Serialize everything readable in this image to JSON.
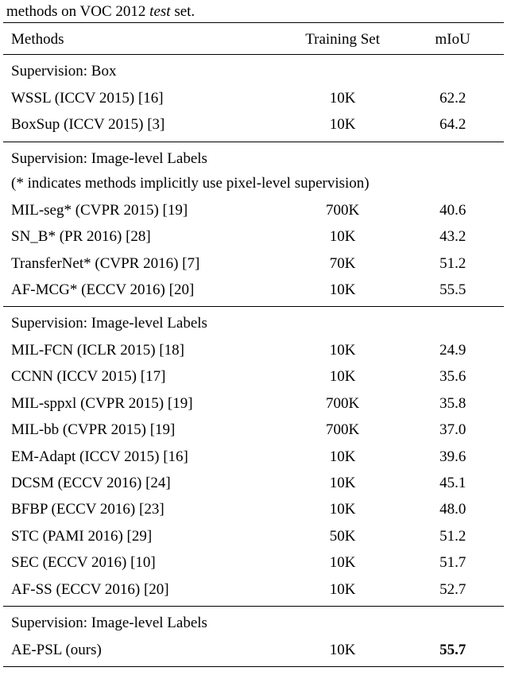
{
  "caption_prefix": "methods on VOC 2012 ",
  "caption_italic": "test",
  "caption_suffix": " set.",
  "headers": {
    "methods": "Methods",
    "training": "Training Set",
    "miou": "mIoU"
  },
  "sections": [
    {
      "title": "Supervision: Box",
      "note": "",
      "rows": [
        {
          "method": "WSSL (ICCV 2015) [16]",
          "training": "10K",
          "miou": "62.2"
        },
        {
          "method": "BoxSup (ICCV 2015) [3]",
          "training": "10K",
          "miou": "64.2"
        }
      ]
    },
    {
      "title": "Supervision: Image-level Labels",
      "note": "(* indicates methods implicitly use pixel-level supervision)",
      "rows": [
        {
          "method": "MIL-seg* (CVPR 2015) [19]",
          "training": "700K",
          "miou": "40.6"
        },
        {
          "method": "SN_B* (PR 2016) [28]",
          "training": "10K",
          "miou": "43.2"
        },
        {
          "method": "TransferNet* (CVPR 2016) [7]",
          "training": "70K",
          "miou": "51.2"
        },
        {
          "method": "AF-MCG* (ECCV 2016) [20]",
          "training": "10K",
          "miou": "55.5"
        }
      ]
    },
    {
      "title": "Supervision: Image-level Labels",
      "note": "",
      "rows": [
        {
          "method": "MIL-FCN (ICLR 2015) [18]",
          "training": "10K",
          "miou": "24.9"
        },
        {
          "method": "CCNN (ICCV 2015) [17]",
          "training": "10K",
          "miou": "35.6"
        },
        {
          "method": "MIL-sppxl (CVPR 2015) [19]",
          "training": "700K",
          "miou": "35.8"
        },
        {
          "method": "MIL-bb (CVPR 2015) [19]",
          "training": "700K",
          "miou": "37.0"
        },
        {
          "method": "EM-Adapt (ICCV 2015) [16]",
          "training": "10K",
          "miou": "39.6"
        },
        {
          "method": "DCSM (ECCV 2016) [24]",
          "training": "10K",
          "miou": "45.1"
        },
        {
          "method": "BFBP (ECCV 2016) [23]",
          "training": "10K",
          "miou": "48.0"
        },
        {
          "method": "STC (PAMI 2016) [29]",
          "training": "50K",
          "miou": "51.2"
        },
        {
          "method": "SEC (ECCV 2016) [10]",
          "training": "10K",
          "miou": "51.7"
        },
        {
          "method": "AF-SS (ECCV 2016) [20]",
          "training": "10K",
          "miou": "52.7"
        }
      ]
    },
    {
      "title": "Supervision: Image-level Labels",
      "note": "",
      "bold_miou": true,
      "bottom_rule": true,
      "rows": [
        {
          "method": "AE-PSL (ours)",
          "training": "10K",
          "miou": "55.7"
        }
      ]
    }
  ],
  "style": {
    "font_family": "Times New Roman",
    "font_size_pt": 19,
    "text_color": "#000000",
    "background_color": "#ffffff",
    "rule_color": "#000000",
    "col_widths_pct": [
      56,
      22,
      22
    ]
  }
}
